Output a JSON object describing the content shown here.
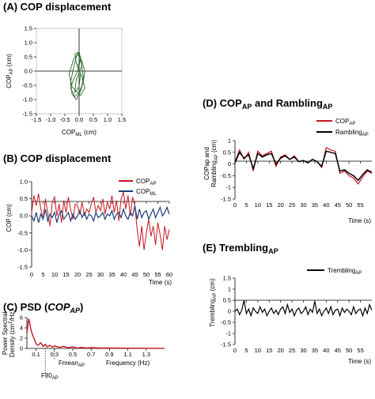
{
  "colors": {
    "ap": "#c8161d",
    "ml": "#1f3d7a",
    "traj": "#2e6b2e",
    "rambling": "#000000",
    "trembling": "#000000",
    "psd": "#c8161d"
  },
  "panel_a": {
    "letter": "(A)",
    "title": "COP displacement",
    "ylabel_main": "COP",
    "ylabel_sub": "AP",
    "ylabel_unit": " (cm)",
    "xlabel_main": "COP",
    "xlabel_sub": "ML",
    "xlabel_unit": " (cm)"
  },
  "panel_b": {
    "letter": "(B)",
    "title": "COP displacement",
    "ylabel": "COP (cm)",
    "xlabel": "Time (s)",
    "legend_ap_main": "COP",
    "legend_ap_sub": "AP",
    "legend_ml_main": "COP",
    "legend_ml_sub": "ML"
  },
  "panel_c": {
    "letter": "(C)",
    "title_main": "PSD (",
    "title_italic": "COP",
    "title_sub": "AP",
    "title_end": ")",
    "ylabel_line1": "Power Spectral",
    "ylabel_line2": "Density (cm",
    "ylabel_sup": "2",
    "ylabel_end": "/Hz)",
    "xlabel": "Frequency (Hz)",
    "fmean_main": "Fmean",
    "fmean_sub": "AP",
    "f80_main": "F80",
    "f80_sub": "AP"
  },
  "panel_d": {
    "letter": "(D)",
    "title_main": "COP",
    "title_sub1": "AP",
    "title_mid": " and Rambling",
    "title_sub2": "AP",
    "ylabel_line1": "COPap and",
    "ylabel_line2": "Rambling",
    "ylabel_sub": "AP",
    "ylabel_unit": " (cm)",
    "xlabel": "Time (s)",
    "legend_cop_main": "COP",
    "legend_cop_sub": "AP",
    "legend_ramb_main": "Rambling",
    "legend_ramb_sub": "AP"
  },
  "panel_e": {
    "letter": "(E)",
    "title_main": "Trembling",
    "title_sub": "AP",
    "ylabel_main": "Trembling",
    "ylabel_sub": "AP",
    "ylabel_unit": " (cm)",
    "xlabel": "Time (s)",
    "legend_main": "Trembling",
    "legend_sub": "AP"
  },
  "chart_data": [
    {
      "panel": "A",
      "type": "line",
      "title": "COP displacement",
      "xlabel": "COP_ML (cm)",
      "ylabel": "COP_AP (cm)",
      "xlim": [
        -1.5,
        1.5
      ],
      "ylim": [
        -1.5,
        1.5
      ],
      "xticks": [
        "-1.5",
        "-1.0",
        "-0.5",
        "0.0",
        "0.5",
        "1.0",
        "1.5"
      ],
      "yticks": [
        "-1.5",
        "-1.0",
        "-0.5",
        "0.0",
        "0.5",
        "1.0",
        "1.5"
      ],
      "series": [
        {
          "points": [
            [
              0.0,
              0.0
            ],
            [
              -0.1,
              0.3
            ],
            [
              -0.15,
              0.6
            ],
            [
              -0.05,
              0.65
            ],
            [
              0.05,
              0.5
            ],
            [
              0.1,
              0.1
            ],
            [
              0.15,
              -0.2
            ],
            [
              0.1,
              -0.5
            ],
            [
              0.0,
              -0.75
            ],
            [
              -0.15,
              -0.9
            ],
            [
              -0.3,
              -0.6
            ],
            [
              -0.2,
              -0.3
            ],
            [
              -0.05,
              0.0
            ],
            [
              0.05,
              0.4
            ],
            [
              0.0,
              0.7
            ],
            [
              -0.1,
              0.5
            ],
            [
              -0.2,
              0.1
            ],
            [
              -0.3,
              -0.4
            ],
            [
              -0.25,
              -0.8
            ],
            [
              -0.1,
              -1.0
            ],
            [
              0.05,
              -0.7
            ],
            [
              0.15,
              -0.35
            ],
            [
              0.2,
              0.0
            ],
            [
              0.1,
              0.35
            ],
            [
              -0.05,
              0.6
            ],
            [
              -0.2,
              0.4
            ],
            [
              -0.35,
              -0.1
            ],
            [
              -0.25,
              -0.55
            ],
            [
              0.05,
              -0.85
            ],
            [
              0.2,
              -0.6
            ],
            [
              0.1,
              -0.2
            ],
            [
              -0.05,
              0.15
            ],
            [
              0.05,
              0.45
            ],
            [
              0.1,
              0.2
            ],
            [
              -0.1,
              -0.3
            ],
            [
              -0.15,
              -0.75
            ],
            [
              0.0,
              -0.55
            ],
            [
              0.05,
              -0.1
            ]
          ]
        }
      ]
    },
    {
      "panel": "B",
      "type": "line",
      "title": "COP displacement",
      "xlabel": "Time (s)",
      "ylabel": "COP (cm)",
      "xlim": [
        0,
        60
      ],
      "ylim": [
        -1.5,
        1.0
      ],
      "xticks": [
        "0",
        "5",
        "10",
        "15",
        "20",
        "25",
        "30",
        "35",
        "40",
        "45",
        "50",
        "55",
        "60"
      ],
      "yticks": [
        "1.0",
        "0.5",
        "0.0",
        "-0.5",
        "-1.0",
        "-1.5"
      ],
      "series": [
        {
          "name": "COP_AP",
          "x": [
            0,
            1,
            2,
            3,
            4,
            5,
            6,
            7,
            8,
            9,
            10,
            11,
            12,
            13,
            14,
            15,
            16,
            17,
            18,
            19,
            20,
            21,
            22,
            23,
            24,
            25,
            26,
            27,
            28,
            29,
            30,
            31,
            32,
            33,
            34,
            35,
            36,
            37,
            38,
            39,
            40,
            41,
            42,
            43,
            44,
            45,
            46,
            47,
            48,
            49,
            50,
            51,
            52,
            53,
            54,
            55,
            56,
            57,
            58,
            59,
            60
          ],
          "values": [
            0.1,
            0.6,
            0.3,
            0.65,
            0.2,
            -0.1,
            0.5,
            0.1,
            -0.3,
            0.4,
            0.55,
            0.0,
            0.35,
            -0.2,
            0.45,
            0.1,
            0.55,
            0.2,
            -0.1,
            0.35,
            0.3,
            0.05,
            0.4,
            0.0,
            0.2,
            0.1,
            0.35,
            0.55,
            0.1,
            0.3,
            0.15,
            0.5,
            0.05,
            0.4,
            0.2,
            0.6,
            0.1,
            0.45,
            -0.15,
            0.5,
            0.7,
            0.2,
            0.6,
            0.0,
            0.55,
            0.3,
            -0.4,
            -0.9,
            -0.3,
            -1.0,
            -0.5,
            -0.1,
            -0.6,
            -0.3,
            -0.85,
            -0.2,
            -0.55,
            -1.0,
            -0.3,
            -0.7,
            -0.4
          ]
        },
        {
          "name": "COP_ML",
          "x": [
            0,
            1,
            2,
            3,
            4,
            5,
            6,
            7,
            8,
            9,
            10,
            11,
            12,
            13,
            14,
            15,
            16,
            17,
            18,
            19,
            20,
            21,
            22,
            23,
            24,
            25,
            26,
            27,
            28,
            29,
            30,
            31,
            32,
            33,
            34,
            35,
            36,
            37,
            38,
            39,
            40,
            41,
            42,
            43,
            44,
            45,
            46,
            47,
            48,
            49,
            50,
            51,
            52,
            53,
            54,
            55,
            56,
            57,
            58,
            59,
            60
          ],
          "values": [
            0.0,
            -0.15,
            0.1,
            -0.2,
            0.05,
            -0.1,
            0.2,
            -0.15,
            0.05,
            -0.05,
            0.1,
            -0.2,
            0.05,
            0.15,
            -0.1,
            0.0,
            0.1,
            -0.15,
            0.05,
            -0.1,
            0.0,
            0.15,
            -0.05,
            0.1,
            -0.1,
            0.05,
            0.0,
            -0.15,
            0.1,
            -0.05,
            0.0,
            0.1,
            -0.1,
            0.05,
            0.0,
            0.15,
            -0.1,
            0.05,
            0.1,
            -0.05,
            0.2,
            0.0,
            -0.1,
            0.1,
            0.0,
            0.3,
            -0.1,
            0.2,
            -0.05,
            0.1,
            0.15,
            -0.1,
            0.05,
            0.2,
            -0.05,
            0.1,
            0.25,
            0.0,
            0.1,
            0.25,
            0.05
          ]
        }
      ]
    },
    {
      "panel": "C",
      "type": "line",
      "title": "PSD (COP_AP)",
      "xlabel": "Frequency (Hz)",
      "ylabel": "Power Spectral Density (cm2/Hz)",
      "xlim": [
        0,
        1.5
      ],
      "ylim": [
        0,
        6
      ],
      "xticks": [
        "0.1",
        "0.3",
        "0.5",
        "0.7",
        "0.9",
        "1.1",
        "1.3"
      ],
      "yticks": [
        "6",
        "4",
        "2",
        "0"
      ],
      "annotations": {
        "fmean_ap_hz": 0.3,
        "f80_ap_hz": 0.2
      },
      "series": [
        {
          "x": [
            0.0,
            0.02,
            0.05,
            0.08,
            0.1,
            0.12,
            0.15,
            0.18,
            0.2,
            0.22,
            0.25,
            0.28,
            0.3,
            0.35,
            0.4,
            0.45,
            0.5,
            0.55,
            0.6,
            0.65,
            0.7,
            0.8,
            0.9,
            1.0,
            1.1,
            1.2,
            1.3,
            1.4,
            1.5
          ],
          "values": [
            3.0,
            5.8,
            3.2,
            1.8,
            0.9,
            0.6,
            1.1,
            0.4,
            0.8,
            0.3,
            0.6,
            0.25,
            0.5,
            0.2,
            0.4,
            0.15,
            0.3,
            0.1,
            0.2,
            0.1,
            0.15,
            0.1,
            0.08,
            0.06,
            0.05,
            0.04,
            0.03,
            0.03,
            0.02
          ]
        }
      ]
    },
    {
      "panel": "D",
      "type": "line",
      "title": "COP_AP and Rambling_AP",
      "xlabel": "Time (s)",
      "ylabel": "COPap and Rambling_AP (cm)",
      "xlim": [
        0,
        60
      ],
      "ylim": [
        -1.5,
        1.0
      ],
      "xticks": [
        "0",
        "5",
        "10",
        "15",
        "20",
        "25",
        "30",
        "35",
        "40",
        "45",
        "50",
        "55"
      ],
      "yticks": [
        "1",
        "0.5",
        "0",
        "-0.5",
        "-1",
        "-1.5"
      ],
      "series": [
        {
          "name": "COP_AP",
          "x": [
            0,
            2,
            4,
            6,
            8,
            10,
            12,
            14,
            16,
            18,
            20,
            22,
            24,
            26,
            28,
            30,
            32,
            34,
            36,
            38,
            40,
            42,
            44,
            46,
            48,
            50,
            52,
            54,
            56,
            58,
            60
          ],
          "values": [
            0.1,
            0.6,
            0.2,
            0.5,
            -0.3,
            0.55,
            0.35,
            0.45,
            0.55,
            -0.1,
            0.3,
            0.4,
            0.2,
            0.35,
            0.1,
            0.15,
            0.05,
            0.2,
            0.1,
            -0.15,
            0.7,
            0.6,
            0.55,
            -0.4,
            -0.3,
            -0.5,
            -0.6,
            -0.85,
            -0.55,
            -0.3,
            -0.4
          ]
        },
        {
          "name": "Rambling_AP",
          "x": [
            0,
            2,
            4,
            6,
            8,
            10,
            12,
            14,
            16,
            18,
            20,
            22,
            24,
            26,
            28,
            30,
            32,
            34,
            36,
            38,
            40,
            42,
            44,
            46,
            48,
            50,
            52,
            54,
            56,
            58,
            60
          ],
          "values": [
            0.05,
            0.5,
            0.25,
            0.4,
            -0.2,
            0.45,
            0.3,
            0.4,
            0.45,
            0.0,
            0.25,
            0.35,
            0.2,
            0.3,
            0.1,
            0.15,
            0.05,
            0.2,
            0.1,
            -0.1,
            0.55,
            0.5,
            0.45,
            -0.3,
            -0.25,
            -0.4,
            -0.5,
            -0.7,
            -0.45,
            -0.25,
            -0.35
          ]
        }
      ]
    },
    {
      "panel": "E",
      "type": "line",
      "title": "Trembling_AP",
      "xlabel": "Time (s)",
      "ylabel": "Trembling_AP (cm)",
      "xlim": [
        0,
        60
      ],
      "ylim": [
        -1.5,
        1.5
      ],
      "xticks": [
        "0",
        "5",
        "10",
        "15",
        "20",
        "25",
        "30",
        "35",
        "40",
        "45",
        "50",
        "55"
      ],
      "yticks": [
        "1.5",
        "1",
        "0.5",
        "0",
        "-0.5",
        "-1",
        "-1.5"
      ],
      "series": [
        {
          "name": "Trembling_AP",
          "x": [
            0,
            1,
            2,
            3,
            4,
            5,
            6,
            7,
            8,
            9,
            10,
            11,
            12,
            13,
            14,
            15,
            16,
            17,
            18,
            19,
            20,
            21,
            22,
            23,
            24,
            25,
            26,
            27,
            28,
            29,
            30,
            31,
            32,
            33,
            34,
            35,
            36,
            37,
            38,
            39,
            40,
            41,
            42,
            43,
            44,
            45,
            46,
            47,
            48,
            49,
            50,
            51,
            52,
            53,
            54,
            55,
            56,
            57,
            58,
            59,
            60
          ],
          "values": [
            0.0,
            0.1,
            -0.15,
            0.05,
            0.5,
            -0.1,
            0.1,
            -0.2,
            0.15,
            0.0,
            -0.1,
            0.2,
            -0.05,
            0.1,
            -0.2,
            0.0,
            0.15,
            -0.1,
            0.05,
            -0.15,
            0.1,
            0.2,
            -0.1,
            0.3,
            -0.05,
            0.1,
            -0.2,
            0.05,
            0.15,
            -0.1,
            0.0,
            0.2,
            -0.15,
            0.1,
            -0.05,
            0.45,
            -0.1,
            0.1,
            -0.2,
            0.0,
            0.15,
            -0.1,
            0.2,
            -0.15,
            0.05,
            0.1,
            -0.2,
            0.15,
            -0.05,
            0.1,
            0.0,
            -0.15,
            0.2,
            -0.1,
            0.05,
            0.1,
            -0.2,
            0.15,
            -0.1,
            0.3,
            0.05
          ]
        }
      ]
    }
  ]
}
